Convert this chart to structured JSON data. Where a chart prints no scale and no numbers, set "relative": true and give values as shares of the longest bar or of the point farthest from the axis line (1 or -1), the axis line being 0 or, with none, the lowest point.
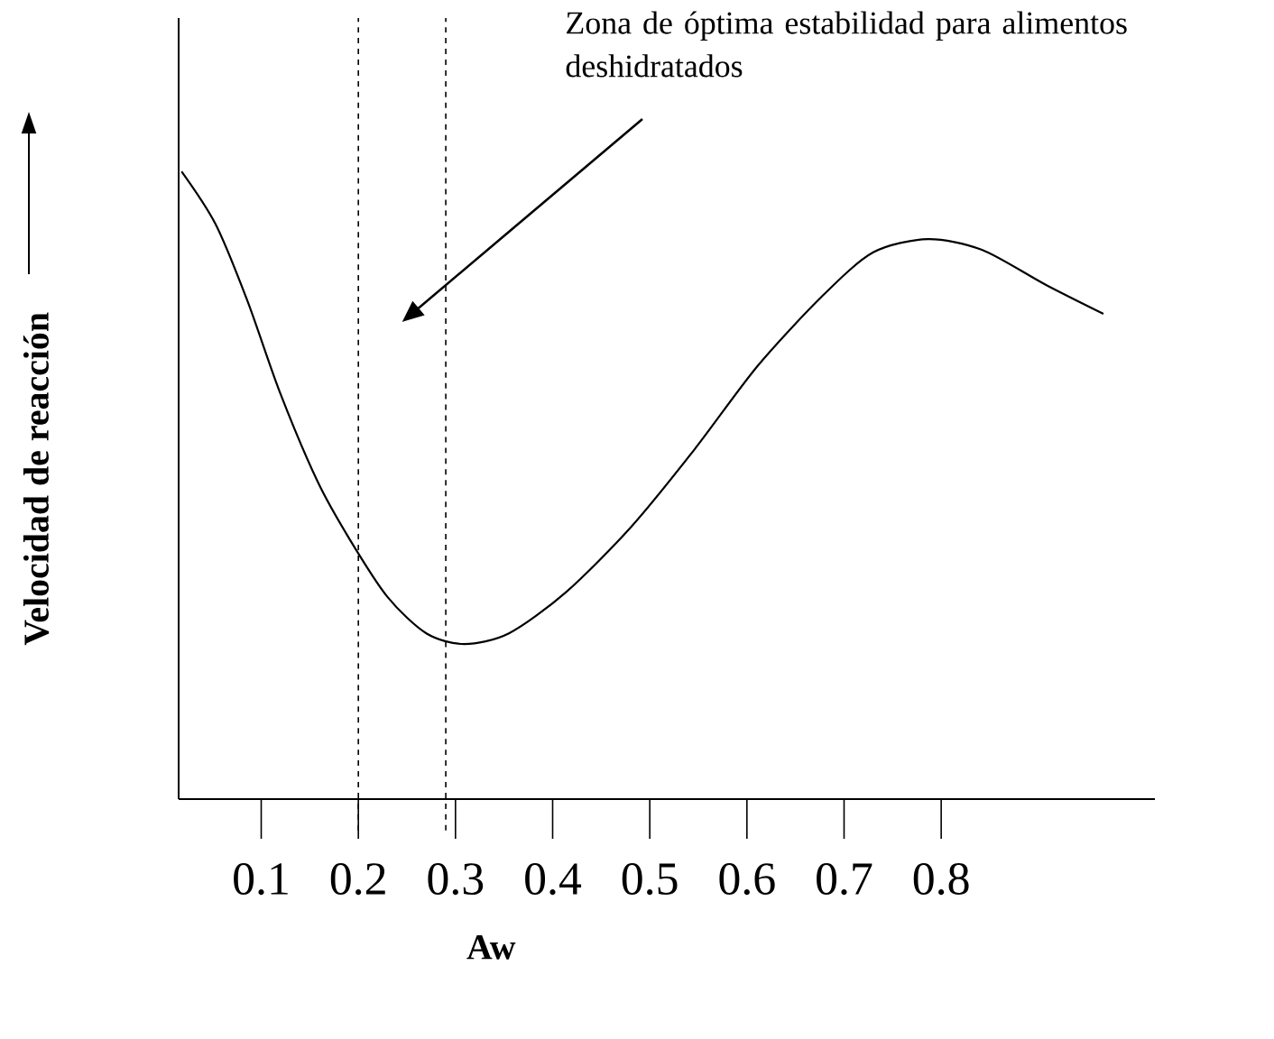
{
  "chart_data": {
    "type": "line",
    "relative": true,
    "xlabel": "Aw",
    "ylabel": "Velocidad de reacción",
    "color": "#000000",
    "marker": "none",
    "line_style": "solid",
    "xlim": [
      0.015,
      1.02
    ],
    "xticks": [
      0.1,
      0.2,
      0.3,
      0.4,
      0.5,
      0.6,
      0.7,
      0.8
    ],
    "x": [
      0.018,
      0.053,
      0.086,
      0.119,
      0.158,
      0.191,
      0.23,
      0.27,
      0.309,
      0.355,
      0.414,
      0.481,
      0.546,
      0.611,
      0.678,
      0.73,
      0.786,
      0.842,
      0.908,
      0.967
    ],
    "values": [
      1,
      0.916,
      0.793,
      0.649,
      0.506,
      0.414,
      0.322,
      0.264,
      0.247,
      0.264,
      0.33,
      0.434,
      0.557,
      0.69,
      0.802,
      0.871,
      0.892,
      0.875,
      0.819,
      0.773
    ],
    "ref_lines": [
      {
        "axis": "x",
        "value": 0.2,
        "line_style": "dashed"
      },
      {
        "axis": "x",
        "value": 0.29,
        "line_style": "dashed"
      }
    ],
    "annotations": [
      "Zona de óptima estabilidad para alimentos deshidratados"
    ]
  }
}
